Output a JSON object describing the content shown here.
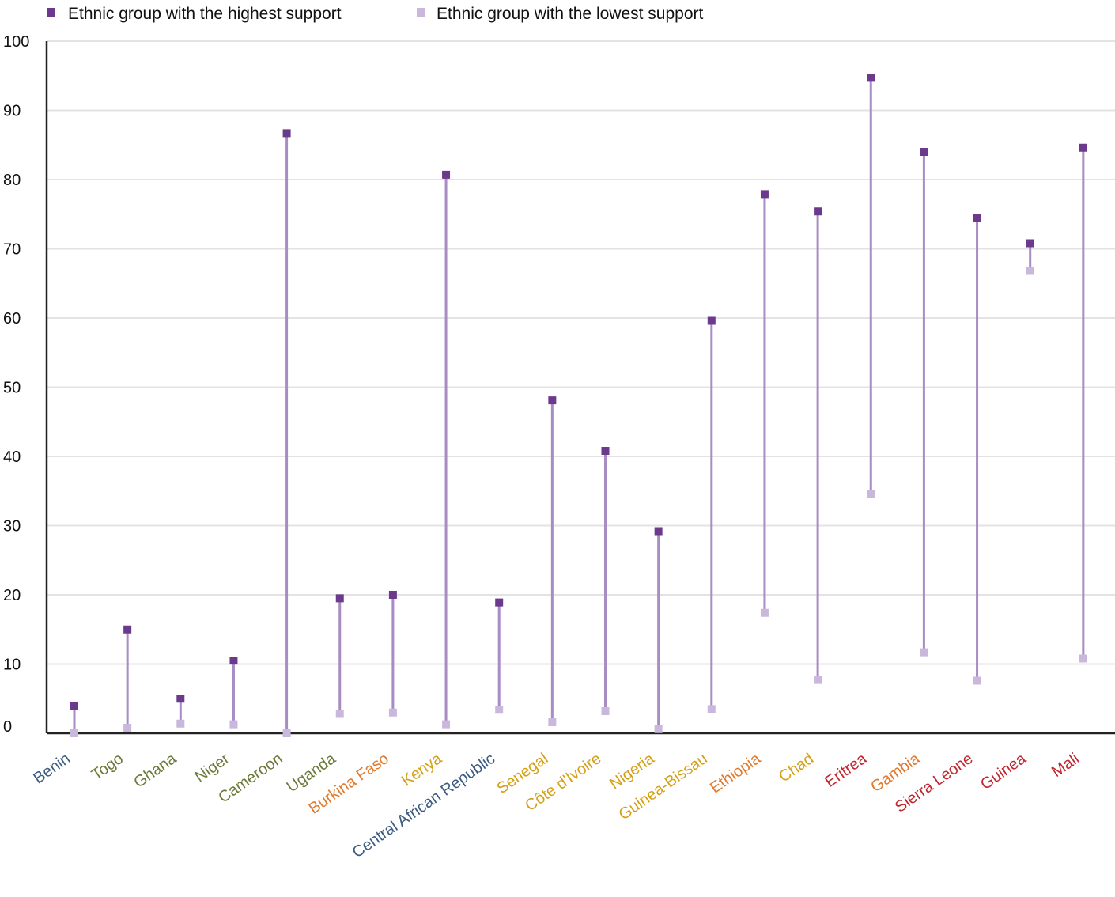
{
  "chart_data": {
    "type": "dumbbell",
    "legend": {
      "position": "top-left",
      "high_label": "Ethnic group with the highest support",
      "low_label": "Ethnic group with the lowest support"
    },
    "ylim": [
      0,
      100
    ],
    "yticks": [
      "0",
      "10",
      "20",
      "30",
      "40",
      "50",
      "60",
      "70",
      "80",
      "90",
      "100"
    ],
    "grid": true,
    "colors": {
      "high": "#6b3a8c",
      "low": "#c9b8dc",
      "stem": "#a88cc4",
      "grid": "#e3e3e3",
      "axis": "#222222"
    },
    "categories": [
      "Benin",
      "Togo",
      "Ghana",
      "Niger",
      "Cameroon",
      "Uganda",
      "Burkina Faso",
      "Kenya",
      "Central African Republic",
      "Senegal",
      "Côte d'Ivoire",
      "Nigeria",
      "Guinea-Bissau",
      "Ethiopia",
      "Chad",
      "Eritrea",
      "Gambia",
      "Sierra Leone",
      "Guinea",
      "Mali"
    ],
    "category_colors": [
      "#3d5a80",
      "#6b7a3a",
      "#6b7a3a",
      "#6b7a3a",
      "#6b7a3a",
      "#6b7a3a",
      "#e07a2e",
      "#d4a017",
      "#3d5a80",
      "#d4a017",
      "#d4a017",
      "#d4a017",
      "#d4a017",
      "#e07a2e",
      "#d4a017",
      "#c0262d",
      "#e07a2e",
      "#c0262d",
      "#c0262d",
      "#c0262d"
    ],
    "series": [
      {
        "name": "Ethnic group with the highest support",
        "values": [
          4,
          15,
          5,
          10.5,
          86.7,
          19.5,
          20,
          80.7,
          18.9,
          48.1,
          40.8,
          29.2,
          59.6,
          77.9,
          75.4,
          94.7,
          84,
          74.4,
          70.8,
          84.6
        ]
      },
      {
        "name": "Ethnic group with the lowest support",
        "values": [
          0,
          0.8,
          1.4,
          1.3,
          0,
          2.8,
          3,
          1.3,
          3.4,
          1.6,
          3.2,
          0.6,
          3.5,
          17.4,
          7.7,
          34.6,
          11.7,
          7.6,
          66.8,
          10.8
        ]
      }
    ]
  }
}
